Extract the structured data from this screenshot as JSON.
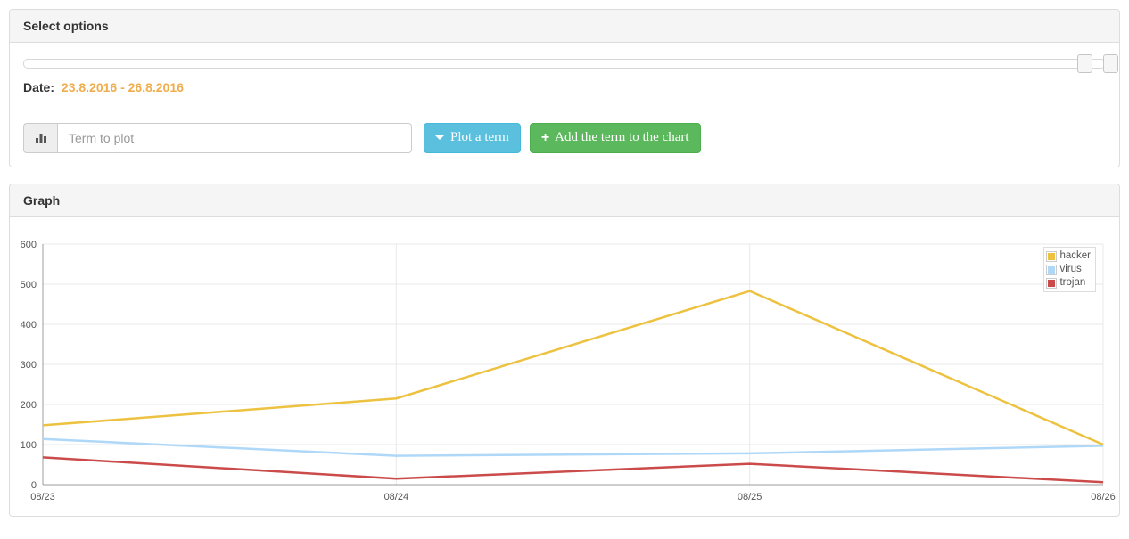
{
  "select_options_panel": {
    "title": "Select options",
    "date_label": "Date:",
    "date_range": "23.8.2016 - 26.8.2016",
    "term_input": {
      "placeholder": "Term to plot",
      "value": ""
    },
    "plot_button_label": "Plot a term",
    "add_button_label": "Add the term to the chart",
    "plus_glyph": "+"
  },
  "graph_panel": {
    "title": "Graph"
  },
  "colors": {
    "date_highlight": "#f0ad4e",
    "info_button": "#5bc0de",
    "success_button": "#5cb85c",
    "grid_line": "#e8e8e8",
    "axis_line": "#9c9c9c",
    "tick_text": "#545454"
  },
  "chart_data": {
    "type": "line",
    "title": "",
    "xlabel": "",
    "ylabel": "",
    "x": [
      "08/23",
      "08/24",
      "08/25",
      "08/26"
    ],
    "series": [
      {
        "name": "hacker",
        "color": "#edc240",
        "values": [
          148,
          215,
          483,
          100
        ]
      },
      {
        "name": "virus",
        "color": "#afd8f8",
        "values": [
          114,
          72,
          78,
          97
        ]
      },
      {
        "name": "trojan",
        "color": "#cb4b4b",
        "values": [
          68,
          15,
          52,
          6
        ]
      }
    ],
    "ylim": [
      0,
      600
    ],
    "yticks": [
      0,
      100,
      200,
      300,
      400,
      500,
      600
    ],
    "grid": true,
    "legend_position": "top-right"
  }
}
